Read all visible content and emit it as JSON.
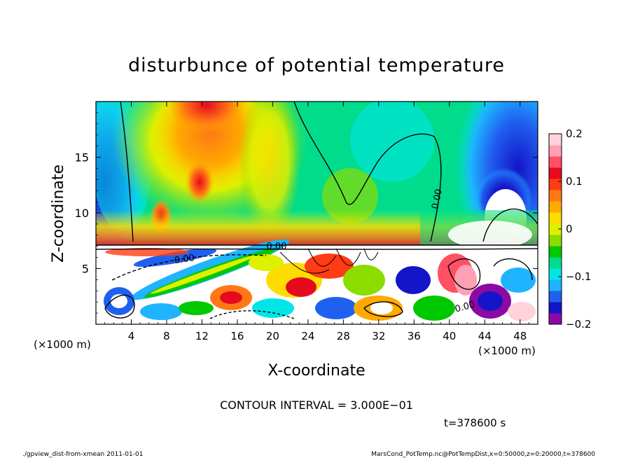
{
  "chart_data": {
    "type": "heatmap",
    "title": "disturbunce of potential temperature",
    "xlabel": "X-coordinate",
    "ylabel": "Z-coordinate",
    "x_unit_left": "(×1000 m)",
    "x_unit_right": "(×1000 m)",
    "xlim": [
      0,
      50
    ],
    "ylim": [
      0,
      20
    ],
    "x_ticks": [
      4,
      8,
      12,
      16,
      20,
      24,
      28,
      32,
      36,
      40,
      44,
      48
    ],
    "x_tick_labels": [
      "4",
      "8",
      "12",
      "16",
      "20",
      "24",
      "28",
      "32",
      "36",
      "40",
      "44",
      "48"
    ],
    "y_ticks": [
      5,
      10,
      15
    ],
    "y_tick_labels": [
      "5",
      "10",
      "15"
    ],
    "colorbar": {
      "min": -0.2,
      "max": 0.2,
      "tick_values": [
        0.2,
        0.1,
        0,
        -0.1,
        -0.2
      ],
      "tick_labels": [
        "0.2",
        "0.1",
        "0",
        "−0.1",
        "−0.2"
      ],
      "colors": [
        "#8b0aa6",
        "#1414c8",
        "#2060f0",
        "#1eb4ff",
        "#00e6e6",
        "#00dc8c",
        "#00c800",
        "#8cdc00",
        "#dcf000",
        "#ffdc00",
        "#ffaa00",
        "#ff7814",
        "#ff3c14",
        "#e60a1e",
        "#ff5064",
        "#ffa0b4",
        "#ffd2dc"
      ]
    },
    "contour_labels": [
      "0.00",
      "0.00",
      "0.00",
      "0.00"
    ],
    "contour_interval_text": "CONTOUR INTERVAL = 3.000E−01",
    "time_text": "t=378600 s"
  },
  "footer": {
    "left": "./gpview_dist-from-xmean  2011-01-01",
    "right": "MarsCond_PotTemp.nc@PotTempDist,x=0:50000,z=0:20000,t=378600"
  }
}
